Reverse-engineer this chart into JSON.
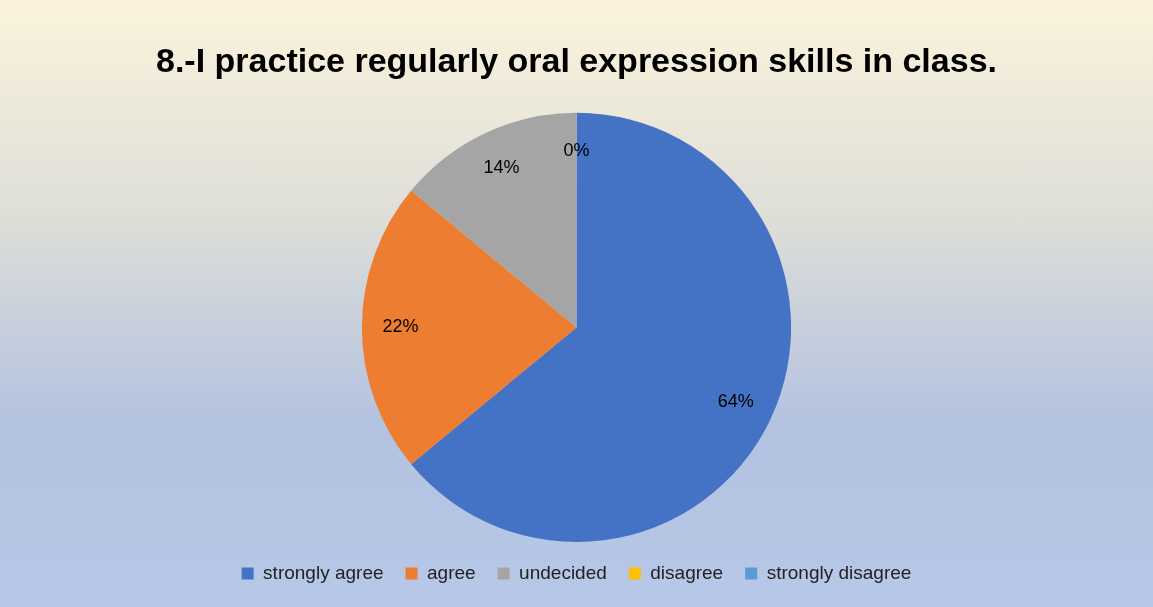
{
  "chart_data": {
    "type": "pie",
    "title": "8.-I practice regularly oral expression skills in class.",
    "categories": [
      "strongly agree",
      "agree",
      "undecided",
      "disagree",
      "strongly disagree"
    ],
    "values": [
      64,
      22,
      14,
      0,
      0
    ],
    "colors": [
      "#4472c4",
      "#ed7d31",
      "#a5a5a5",
      "#ffc000",
      "#5b9bd5"
    ],
    "value_labels": [
      "64%",
      "22%",
      "14%",
      "0%",
      null
    ],
    "legend": "bottom"
  }
}
